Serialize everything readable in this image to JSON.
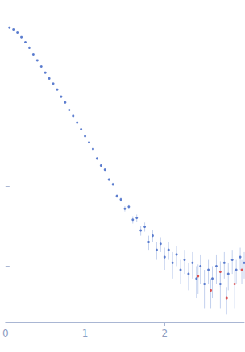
{
  "chart_data": {
    "type": "scatter",
    "log": "y",
    "tick_labels": "x",
    "grid": false,
    "xlim": [
      0,
      3
    ],
    "xticks": [
      0,
      1,
      2
    ],
    "ylim": [
      0.0002,
      2
    ],
    "yticks": [
      0.001,
      0.01,
      0.1
    ],
    "series": [
      {
        "color": "#3a62c4",
        "marker": "circle",
        "x": [
          0.05,
          0.1,
          0.15,
          0.2,
          0.25,
          0.3,
          0.35,
          0.4,
          0.45,
          0.5,
          0.55,
          0.6,
          0.65,
          0.7,
          0.75,
          0.8,
          0.85,
          0.9,
          0.95,
          1.0,
          1.05,
          1.1,
          1.15,
          1.2,
          1.25,
          1.3,
          1.35,
          1.4,
          1.45,
          1.5,
          1.55,
          1.6,
          1.65,
          1.7,
          1.75,
          1.8,
          1.85,
          1.9,
          1.95,
          2.0,
          2.05,
          2.1,
          2.15,
          2.2,
          2.25,
          2.3,
          2.35,
          2.4,
          2.45,
          2.5,
          2.55,
          2.6,
          2.65,
          2.7,
          2.75,
          2.8,
          2.85,
          2.9,
          2.95,
          3.0
        ],
        "values": [
          0.95,
          0.9,
          0.82,
          0.72,
          0.62,
          0.53,
          0.44,
          0.37,
          0.31,
          0.26,
          0.22,
          0.19,
          0.16,
          0.13,
          0.11,
          0.089,
          0.075,
          0.062,
          0.051,
          0.042,
          0.035,
          0.029,
          0.022,
          0.018,
          0.016,
          0.012,
          0.0105,
          0.0075,
          0.0068,
          0.0052,
          0.0055,
          0.0038,
          0.004,
          0.0028,
          0.0031,
          0.002,
          0.0024,
          0.0016,
          0.0019,
          0.0013,
          0.0016,
          0.0011,
          0.0014,
          0.0009,
          0.0012,
          0.0008,
          0.0011,
          0.0007,
          0.001,
          0.0006,
          0.0009,
          0.0007,
          0.001,
          0.0006,
          0.0011,
          0.0008,
          0.0012,
          0.0009,
          0.0013,
          0.0011
        ],
        "errors": [
          0.01,
          0.01,
          0.01,
          0.01,
          0.008,
          0.007,
          0.006,
          0.005,
          0.004,
          0.003,
          0.003,
          0.002,
          0.002,
          0.002,
          0.002,
          0.0015,
          0.0012,
          0.001,
          0.001,
          0.001,
          0.0008,
          0.0007,
          0.0006,
          0.0006,
          0.0005,
          0.0005,
          0.0005,
          0.0004,
          0.0004,
          0.0004,
          0.0004,
          0.0004,
          0.0004,
          0.0004,
          0.0004,
          0.0004,
          0.0004,
          0.0004,
          0.0004,
          0.0004,
          0.0004,
          0.0004,
          0.0004,
          0.0003,
          0.0004,
          0.0003,
          0.0004,
          0.0003,
          0.0004,
          0.0003,
          0.0003,
          0.0003,
          0.0004,
          0.0003,
          0.0004,
          0.0003,
          0.0004,
          0.0003,
          0.0004,
          0.0004
        ]
      },
      {
        "color": "#d9302c",
        "marker": "circle",
        "x": [
          2.42,
          2.58,
          2.7,
          2.78,
          2.88,
          2.97
        ],
        "values": [
          0.00075,
          0.0005,
          0.00085,
          0.0004,
          0.0006,
          0.0009
        ],
        "errors": [
          0.0003,
          0.0002,
          0.0003,
          0.00015,
          0.0003,
          0.0003
        ]
      }
    ]
  }
}
